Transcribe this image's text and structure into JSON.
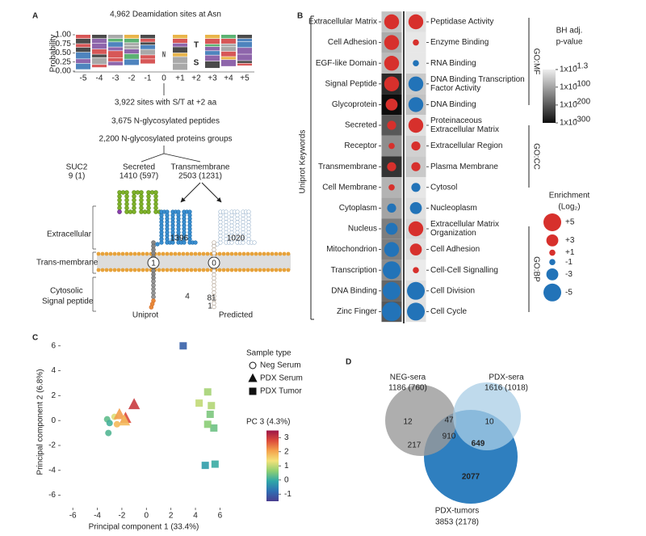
{
  "panel_a": {
    "label": "A",
    "title": "4,962 Deamidation sites at Asn",
    "logo": {
      "y_label": "Probability",
      "yticks": [
        "1.00",
        "0.75",
        "0.50",
        "0.25",
        "0.00"
      ],
      "positions": [
        "-5",
        "-4",
        "-3",
        "-2",
        "-1",
        "0",
        "+1",
        "+2",
        "+3",
        "+4",
        "+5"
      ],
      "letters": [
        "N",
        "T",
        "S"
      ]
    },
    "steps": [
      "3,922 sites with S/T at +2 aa",
      "3,675 N-glycosylated peptides",
      "2,200 N-glycosylated proteins groups"
    ],
    "groups": [
      {
        "name": "SUC2",
        "count": "9 (1)"
      },
      {
        "name": "Secreted",
        "count": "1410 (597)"
      },
      {
        "name": "Transmembrane",
        "count": "2503 (1231)"
      }
    ],
    "regions": [
      "Extracellular",
      "Trans-membrane",
      "Cytosolic"
    ],
    "signal_peptide": "Signal peptide",
    "topology": {
      "uniprot": {
        "label": "Uniprot",
        "extracellular": "1396",
        "transmembrane": "1",
        "cytosolic": [
          "4"
        ]
      },
      "predicted": {
        "label": "Predicted",
        "extracellular": "1020",
        "transmembrane": "0",
        "cytosolic": [
          "81",
          "1"
        ]
      }
    }
  },
  "panel_b": {
    "label": "B",
    "y_title": "Uniprot Keywords",
    "rows_left": [
      {
        "term": "Extracellular Matrix",
        "enrichment": 4,
        "log10_p": -60
      },
      {
        "term": "Cell Adhesion",
        "enrichment": 4,
        "log10_p": -90
      },
      {
        "term": "EGF-like Domain",
        "enrichment": 4,
        "log10_p": -70
      },
      {
        "term": "Signal Peptide",
        "enrichment": 4,
        "log10_p": -260
      },
      {
        "term": "Glycoprotein",
        "enrichment": 3,
        "log10_p": -300
      },
      {
        "term": "Secreted",
        "enrichment": 2,
        "log10_p": -200
      },
      {
        "term": "Receptor",
        "enrichment": 1,
        "log10_p": -130
      },
      {
        "term": "Transmembrane",
        "enrichment": 2,
        "log10_p": -250
      },
      {
        "term": "Cell Membrane",
        "enrichment": 1,
        "log10_p": -80
      },
      {
        "term": "Cytoplasm",
        "enrichment": -2,
        "log10_p": -100
      },
      {
        "term": "Nucleus",
        "enrichment": -3,
        "log10_p": -150
      },
      {
        "term": "Mitochondrion",
        "enrichment": -4,
        "log10_p": -150
      },
      {
        "term": "Transcription",
        "enrichment": -5,
        "log10_p": -130
      },
      {
        "term": "DNA Binding",
        "enrichment": -5,
        "log10_p": -180
      },
      {
        "term": "Zinc Finger",
        "enrichment": -5.5,
        "log10_p": -200
      }
    ],
    "rows_right": [
      {
        "term": "Peptidase Activity",
        "enrichment": 4,
        "log10_p": -20
      },
      {
        "term": "Enzyme Binding",
        "enrichment": 1,
        "log10_p": -10
      },
      {
        "term": "RNA Binding",
        "enrichment": -1,
        "log10_p": -10
      },
      {
        "term": [
          "DNA Binding Transcription",
          "Factor Activity"
        ],
        "enrichment": -4,
        "log10_p": -50
      },
      {
        "term": "DNA Binding",
        "enrichment": -4,
        "log10_p": -60
      },
      {
        "term": [
          "Proteinaceous",
          "Extracellular Matrix"
        ],
        "enrichment": 4,
        "log10_p": -20
      },
      {
        "term": "Extracellular Region",
        "enrichment": 2,
        "log10_p": -40
      },
      {
        "term": "Plasma Membrane",
        "enrichment": 2,
        "log10_p": -50
      },
      {
        "term": "Cytosol",
        "enrichment": -2,
        "log10_p": -10
      },
      {
        "term": "Nucleoplasm",
        "enrichment": -3,
        "log10_p": -20
      },
      {
        "term": [
          "Extracellular Matrix",
          "Organization"
        ],
        "enrichment": 4,
        "log10_p": -30
      },
      {
        "term": "Cell Adhesion",
        "enrichment": 3,
        "log10_p": -20
      },
      {
        "term": "Cell-Cell Signalling",
        "enrichment": 1,
        "log10_p": -5
      },
      {
        "term": "Cell Division",
        "enrichment": -5,
        "log10_p": -20
      },
      {
        "term": "Cell Cycle",
        "enrichment": -5,
        "log10_p": -20
      }
    ],
    "go_groups": [
      "GO:MF",
      "GO:CC",
      "GO:BP"
    ],
    "p_legend": {
      "title": [
        "BH adj.",
        "p-value"
      ],
      "ticks": [
        {
          "value": -1.3,
          "label": "1x10",
          "exponent": "-1.3"
        },
        {
          "value": -100,
          "label": "1x10",
          "exponent": "-100"
        },
        {
          "value": -200,
          "label": "1x10",
          "exponent": "-200"
        },
        {
          "value": -300,
          "label": "1x10",
          "exponent": "-300"
        }
      ]
    },
    "enrichment_legend": {
      "title": [
        "Enrichment",
        "(Log₂)"
      ],
      "items": [
        {
          "value": 5,
          "label": "+5"
        },
        {
          "value": 3,
          "label": "+3"
        },
        {
          "value": 1,
          "label": "+1"
        },
        -1,
        -3,
        -5
      ]
    },
    "positive_color": "#d7302c",
    "negative_color": "#2273b8"
  },
  "chart_data": [
    {
      "type": "scatter",
      "panel_label": "C",
      "xlabel": "Principal component 1 (33.4%)",
      "ylabel": "Principal component 2 (6.8%)",
      "xlim": [
        -7,
        6.5
      ],
      "ylim": [
        -7,
        6.7
      ],
      "xticks": [
        -6,
        -4,
        -2,
        0,
        2,
        4,
        6
      ],
      "yticks": [
        -6,
        -4,
        -2,
        0,
        2,
        4,
        6
      ],
      "legend_title": "Sample type",
      "series": [
        {
          "name": "Neg Serum",
          "marker": "circle",
          "x": [
            -3.2,
            -3.0,
            -2.6,
            -2.4,
            -3.1
          ],
          "y": [
            0.1,
            -0.2,
            0.3,
            -0.3,
            -1.0
          ],
          "pc3": [
            0.3,
            0.1,
            1.2,
            1.8,
            0.2
          ]
        },
        {
          "name": "PDX Serum",
          "marker": "triangle",
          "x": [
            -1.0,
            -1.7,
            -2.2,
            -1.8
          ],
          "y": [
            1.3,
            0.2,
            0.5,
            0.0
          ],
          "pc3": [
            3.0,
            2.8,
            2.1,
            1.8
          ]
        },
        {
          "name": "PDX Tumor",
          "marker": "square",
          "x": [
            3.0,
            4.3,
            5.0,
            5.3,
            5.2,
            5.5,
            5.6,
            4.8,
            5.0
          ],
          "y": [
            6.0,
            1.4,
            2.3,
            1.2,
            0.5,
            -0.6,
            -3.5,
            -3.6,
            -0.3
          ],
          "pc3": [
            -1.0,
            1.0,
            0.8,
            0.9,
            0.5,
            0.4,
            0.0,
            -0.2,
            0.6
          ]
        }
      ],
      "colorbar": {
        "title": "PC 3 (4.3%)",
        "lim": [
          -1.5,
          3.5
        ],
        "ticks": [
          3,
          2,
          1,
          0,
          -1
        ],
        "colors": [
          "#4a3d8f",
          "#2f6fb3",
          "#2fa7a8",
          "#8fcf72",
          "#f3e27a",
          "#f4a24c",
          "#dc4b3b",
          "#9c1648"
        ]
      }
    }
  ],
  "panel_d": {
    "label": "D",
    "sets": [
      {
        "name": "NEG-sera",
        "count": "1186 (760)"
      },
      {
        "name": "PDX-sera",
        "count": "1616 (1018)"
      },
      {
        "name": "PDX-tumors",
        "count": "3853 (2178)"
      }
    ],
    "regions": {
      "neg_only": 12,
      "neg_pdxsera": 47,
      "pdxsera_only": 10,
      "all": 910,
      "neg_tumor": 217,
      "pdxsera_tumor": 649,
      "tumor_only": 2077
    }
  }
}
